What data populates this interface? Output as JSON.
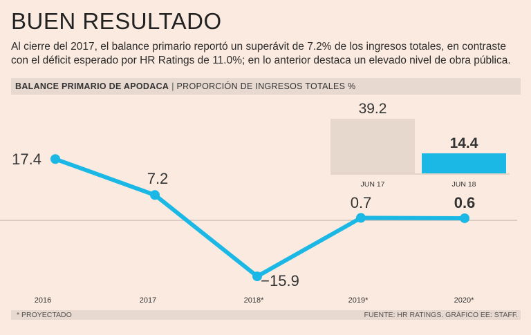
{
  "header": {
    "title": "BUEN RESULTADO",
    "subtitle": "Al cierre del 2017, el balance primario reportó un superávit de 7.2% de los ingresos totales, en contraste con el déficit esperado por HR Ratings de 11.0%; en lo anterior destaca un elevado nivel de obra pública."
  },
  "bar_header": {
    "bold": "BALANCE PRIMARIO DE APODACA",
    "separator": "|",
    "light": "PROPORCIÓN DE INGRESOS TOTALES %"
  },
  "footer": {
    "note": "* PROYECTADO",
    "source": "FUENTE: HR RATINGS. GRÁFICO EE: STAFF."
  },
  "colors": {
    "line": "#1bb8e6",
    "bar_primary": "#1bb8e6",
    "bar_secondary": "#e6d8cd",
    "background": "#fbeadf"
  },
  "chart_data": [
    {
      "type": "line",
      "title": "BALANCE PRIMARIO DE APODACA",
      "ylabel": "PROPORCIÓN DE INGRESOS TOTALES %",
      "categories": [
        "2016",
        "2017",
        "2018*",
        "2019*",
        "2020*"
      ],
      "values": [
        17.4,
        7.2,
        -15.9,
        0.7,
        0.6
      ],
      "labels": [
        "17.4",
        "7.2",
        "−15.9",
        "0.7",
        "0.6"
      ],
      "highlight_index": 4,
      "ylim": [
        -20,
        20
      ]
    },
    {
      "type": "bar",
      "categories": [
        "JUN 17",
        "JUN 18"
      ],
      "values": [
        39.2,
        14.4
      ],
      "labels": [
        "39.2",
        "14.4"
      ],
      "highlight_index": 1,
      "ylim": [
        0,
        40
      ]
    }
  ]
}
